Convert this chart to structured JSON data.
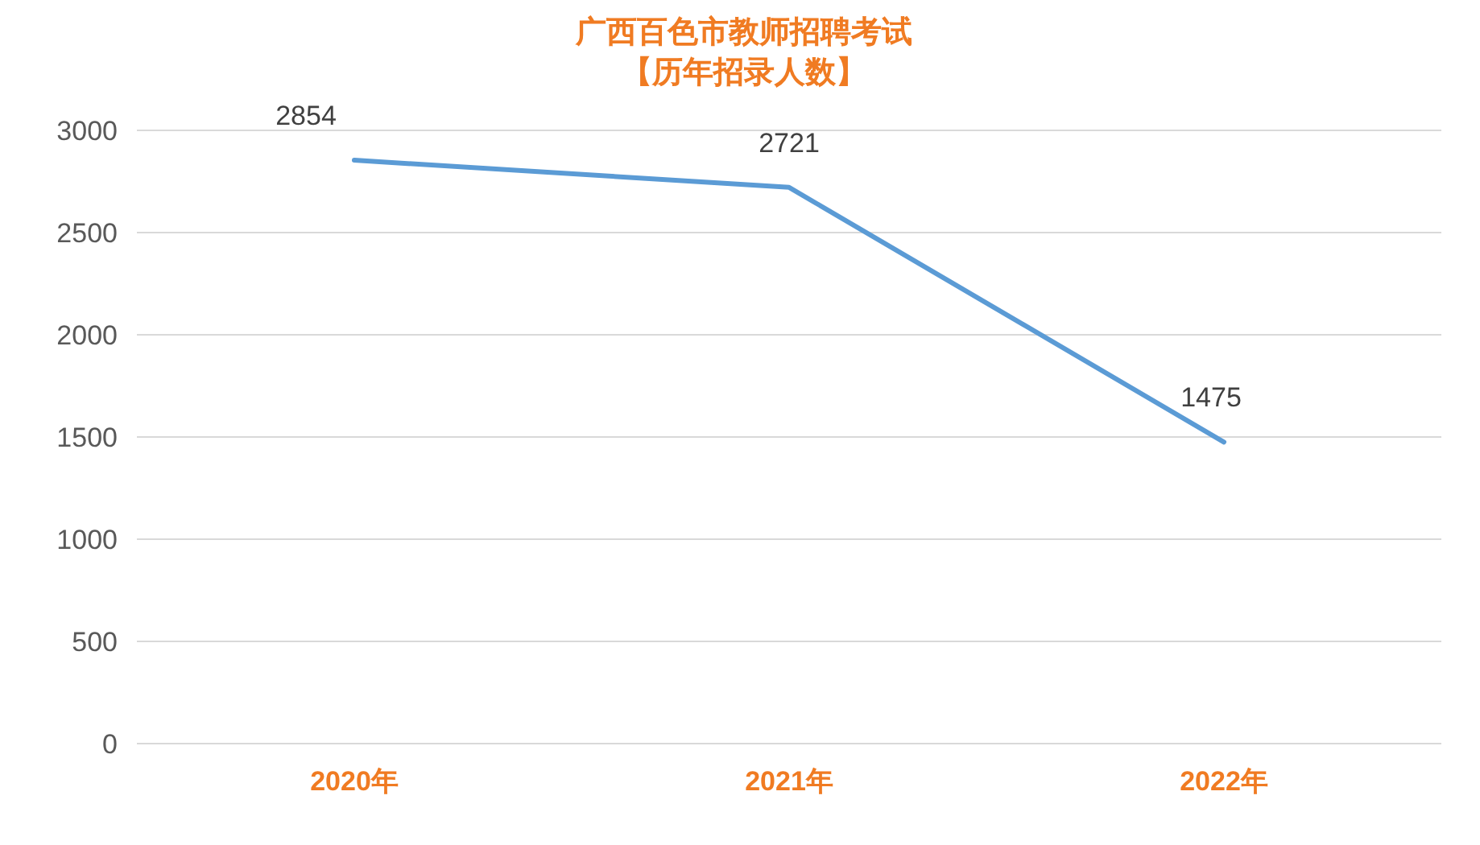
{
  "chart_data": {
    "type": "line",
    "title": "广西百色市教师招聘考试",
    "subtitle": "【历年招录人数】",
    "categories": [
      "2020年",
      "2021年",
      "2022年"
    ],
    "series": [
      {
        "color": "#5b9bd5",
        "values": [
          2854,
          2721,
          1475
        ]
      }
    ],
    "ylim": [
      0,
      3000
    ],
    "yticks": [
      0,
      500,
      1000,
      1500,
      2000,
      2500,
      3000
    ],
    "grid": "y",
    "data_labels": true,
    "marker": "none",
    "line_style": "solid"
  }
}
